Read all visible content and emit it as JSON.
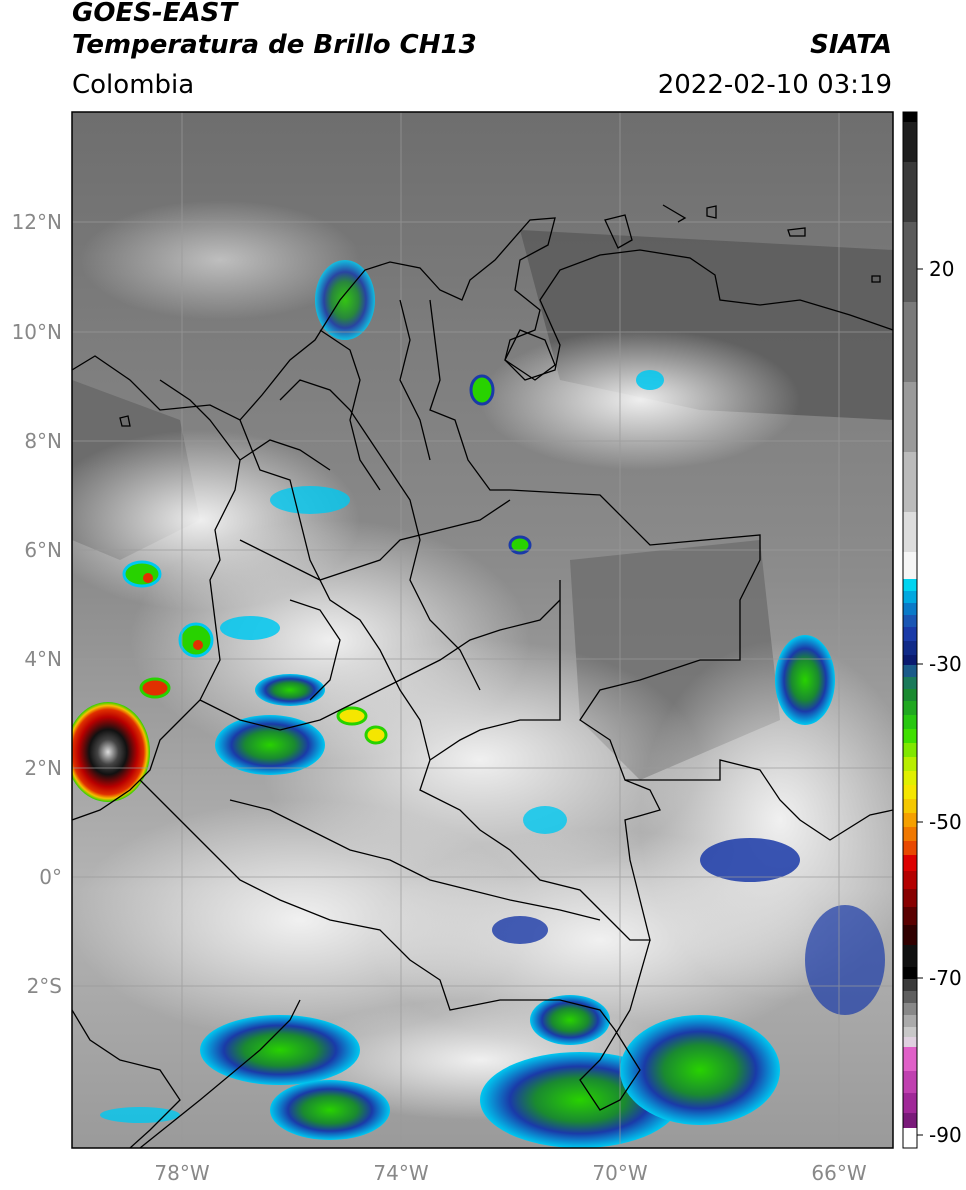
{
  "header": {
    "satellite": "GOES-EAST",
    "product": "Temperatura de Brillo CH13",
    "agency": "SIATA",
    "region": "Colombia",
    "datetime": "2022-02-10 03:19"
  },
  "map": {
    "lon_range": [
      -80,
      -65
    ],
    "lat_range": [
      -5,
      14
    ],
    "lat_ticks": [
      "12°N",
      "10°N",
      "8°N",
      "6°N",
      "4°N",
      "2°N",
      "0°",
      "2°S"
    ],
    "lat_tick_values": [
      12,
      10,
      8,
      6,
      4,
      2,
      0,
      -2
    ],
    "lon_ticks": [
      "78°W",
      "74°W",
      "70°W",
      "66°W"
    ],
    "lon_tick_values": [
      -78,
      -74,
      -70,
      -66
    ],
    "grid": true
  },
  "colorbar": {
    "range": [
      -92,
      30
    ],
    "ticks": [
      "20",
      "-30",
      "-50",
      "-70",
      "-90"
    ],
    "tick_values": [
      20,
      -30,
      -50,
      -70,
      -90
    ],
    "colors": {
      "warm": "#2a2a2a",
      "white": "#ffffff",
      "cyan": "#00c8f0",
      "blue": "#1a3aa8",
      "green": "#28d200",
      "yellow": "#f5e600",
      "red": "#dd0000",
      "black": "#000000",
      "pink": "#e060c8",
      "purple": "#8a1a8a"
    }
  }
}
